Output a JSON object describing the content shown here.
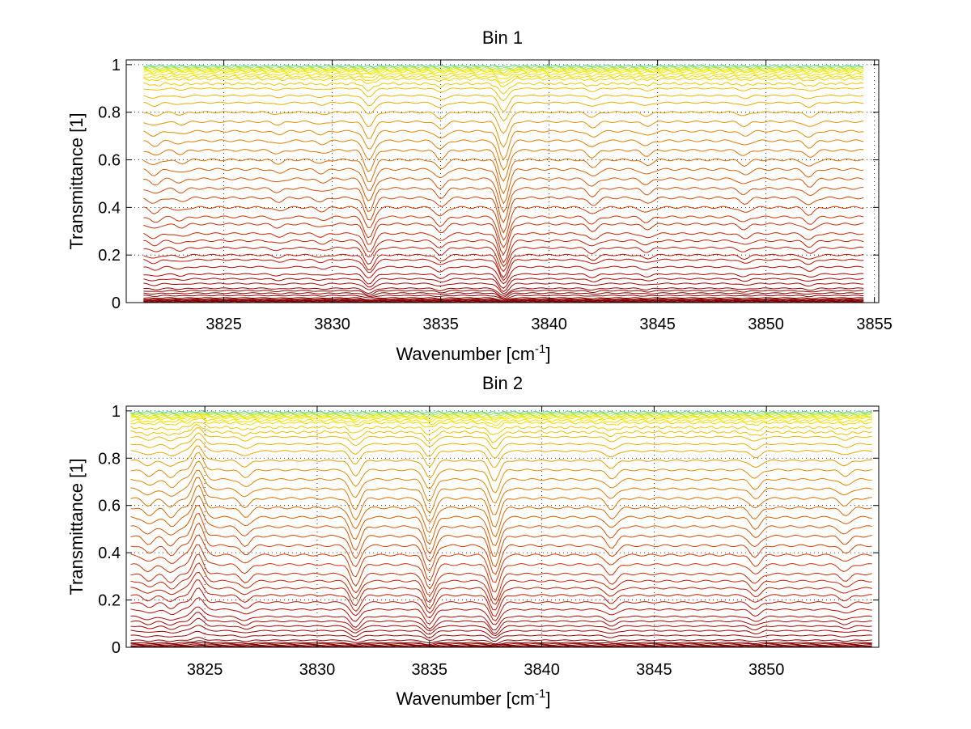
{
  "chart_data": [
    {
      "type": "line",
      "title": "Bin 1",
      "xlabel": "Wavenumber [cm",
      "xlabel_sup": "-1",
      "xlabel_end": "]",
      "ylabel": "Transmittance [1]",
      "xlim": [
        3820.5,
        3855.2
      ],
      "ylim": [
        0,
        1.02
      ],
      "x_ticks": [
        3825,
        3830,
        3835,
        3840,
        3845,
        3850,
        3855
      ],
      "x_tick_labels": [
        "3825",
        "3830",
        "3835",
        "3840",
        "3845",
        "3850",
        "3855"
      ],
      "y_ticks": [
        0,
        0.2,
        0.4,
        0.6,
        0.8,
        1
      ],
      "y_tick_labels": [
        "0",
        "0.2",
        "0.4",
        "0.6",
        "0.8",
        "1"
      ],
      "grid": true,
      "x_start": 3821.3,
      "x_end": 3854.5,
      "series_levels": [
        0.0,
        0.002,
        0.004,
        0.006,
        0.008,
        0.01,
        0.012,
        0.015,
        0.02,
        0.03,
        0.04,
        0.05,
        0.06,
        0.08,
        0.1,
        0.12,
        0.15,
        0.18,
        0.2,
        0.23,
        0.26,
        0.29,
        0.33,
        0.36,
        0.4,
        0.44,
        0.48,
        0.52,
        0.56,
        0.6,
        0.64,
        0.68,
        0.72,
        0.76,
        0.8,
        0.84,
        0.87,
        0.9,
        0.92,
        0.94,
        0.95,
        0.96,
        0.97,
        0.975,
        0.98,
        0.985,
        0.99,
        0.995
      ],
      "absorption_lines": [
        {
          "x": 3821.8,
          "depth": 0.03
        },
        {
          "x": 3823.0,
          "depth": 0.02
        },
        {
          "x": 3827.5,
          "depth": 0.02
        },
        {
          "x": 3829.5,
          "depth": 0.02
        },
        {
          "x": 3831.7,
          "depth": 0.12
        },
        {
          "x": 3835.0,
          "depth": 0.05
        },
        {
          "x": 3837.9,
          "depth": 0.18
        },
        {
          "x": 3842.0,
          "depth": 0.04
        },
        {
          "x": 3844.5,
          "depth": 0.03
        },
        {
          "x": 3849.0,
          "depth": 0.03
        },
        {
          "x": 3852.0,
          "depth": 0.04
        }
      ]
    },
    {
      "type": "line",
      "title": "Bin 2",
      "xlabel": "Wavenumber [cm",
      "xlabel_sup": "-1",
      "xlabel_end": "]",
      "ylabel": "Transmittance [1]",
      "xlim": [
        3821.5,
        3855.0
      ],
      "ylim": [
        0,
        1.02
      ],
      "x_ticks": [
        3825,
        3830,
        3835,
        3840,
        3845,
        3850
      ],
      "x_tick_labels": [
        "3825",
        "3830",
        "3835",
        "3840",
        "3845",
        "3850"
      ],
      "y_ticks": [
        0,
        0.2,
        0.4,
        0.6,
        0.8,
        1
      ],
      "y_tick_labels": [
        "0",
        "0.2",
        "0.4",
        "0.6",
        "0.8",
        "1"
      ],
      "grid": true,
      "x_start": 3821.7,
      "x_end": 3854.7,
      "series_levels": [
        0.0,
        0.003,
        0.006,
        0.01,
        0.015,
        0.02,
        0.03,
        0.05,
        0.07,
        0.09,
        0.11,
        0.13,
        0.16,
        0.19,
        0.22,
        0.25,
        0.28,
        0.31,
        0.35,
        0.39,
        0.43,
        0.47,
        0.51,
        0.55,
        0.59,
        0.63,
        0.67,
        0.71,
        0.75,
        0.79,
        0.83,
        0.86,
        0.89,
        0.91,
        0.93,
        0.95,
        0.96,
        0.97,
        0.975,
        0.98,
        0.985,
        0.99,
        0.995
      ],
      "absorption_lines": [
        {
          "x": 3822.5,
          "depth": 0.04
        },
        {
          "x": 3823.5,
          "depth": 0.05
        },
        {
          "x": 3824.7,
          "depth": -0.12
        },
        {
          "x": 3826.8,
          "depth": 0.05
        },
        {
          "x": 3831.7,
          "depth": 0.12
        },
        {
          "x": 3835.0,
          "depth": 0.14
        },
        {
          "x": 3837.9,
          "depth": 0.16
        },
        {
          "x": 3843.1,
          "depth": 0.06
        },
        {
          "x": 3849.5,
          "depth": 0.06
        },
        {
          "x": 3853.5,
          "depth": 0.04
        }
      ]
    }
  ]
}
